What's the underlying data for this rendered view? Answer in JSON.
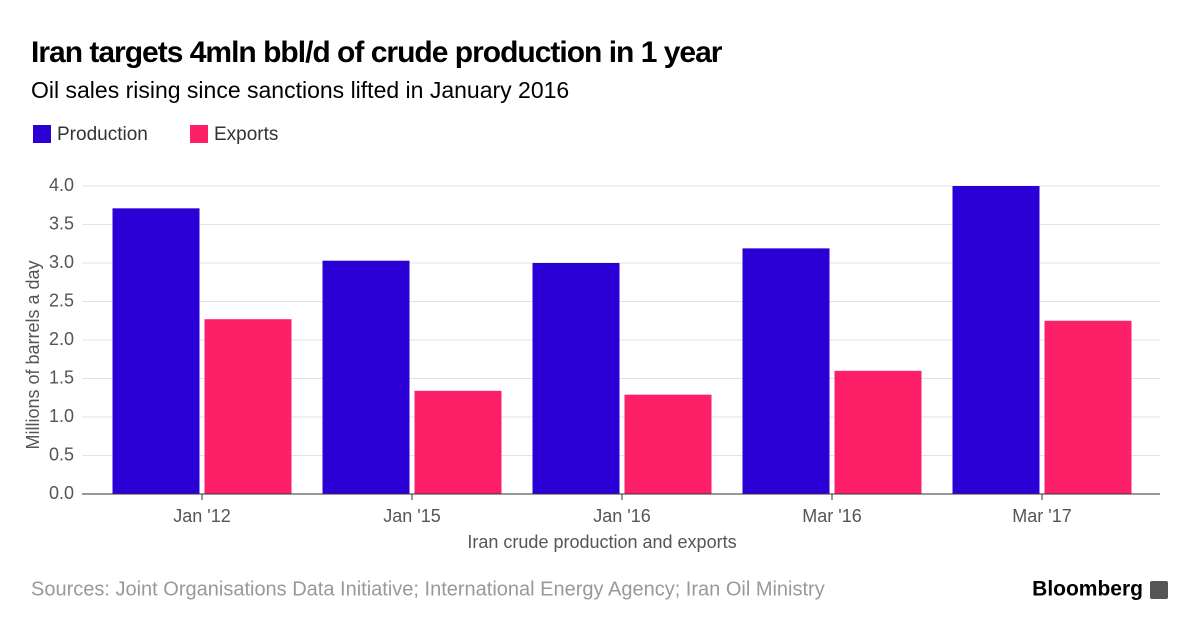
{
  "chart_data": {
    "type": "bar",
    "title": "Iran targets 4mln bbl/d of crude production in 1 year",
    "subtitle": "Oil sales rising since sanctions lifted in January 2016",
    "categories": [
      "Jan '12",
      "Jan '15",
      "Jan '16",
      "Mar '16",
      "Mar '17"
    ],
    "series": [
      {
        "name": "Production",
        "color": "#2b00d6",
        "values": [
          3.71,
          3.03,
          3.0,
          3.19,
          4.0
        ]
      },
      {
        "name": "Exports",
        "color": "#fd1f68",
        "values": [
          2.27,
          1.34,
          1.29,
          1.6,
          2.25
        ]
      }
    ],
    "ylim": [
      0,
      4
    ],
    "yticks": [
      {
        "value": 0,
        "label": "0.0"
      },
      0.5,
      {
        "value": 1,
        "label": "1.0"
      },
      1.5,
      {
        "value": 2,
        "label": "2.0"
      },
      2.5,
      {
        "value": 3,
        "label": "3.0"
      },
      3.5,
      {
        "value": 4,
        "label": "4.0"
      }
    ],
    "ylabel": "Millions of barrels a day",
    "xlabel": "Iran crude production and exports",
    "grid": true,
    "legend": "top-left",
    "source": "Sources: Joint Organisations Data Initiative; International Energy Agency; Iran Oil Ministry",
    "brand": "Bloomberg"
  }
}
